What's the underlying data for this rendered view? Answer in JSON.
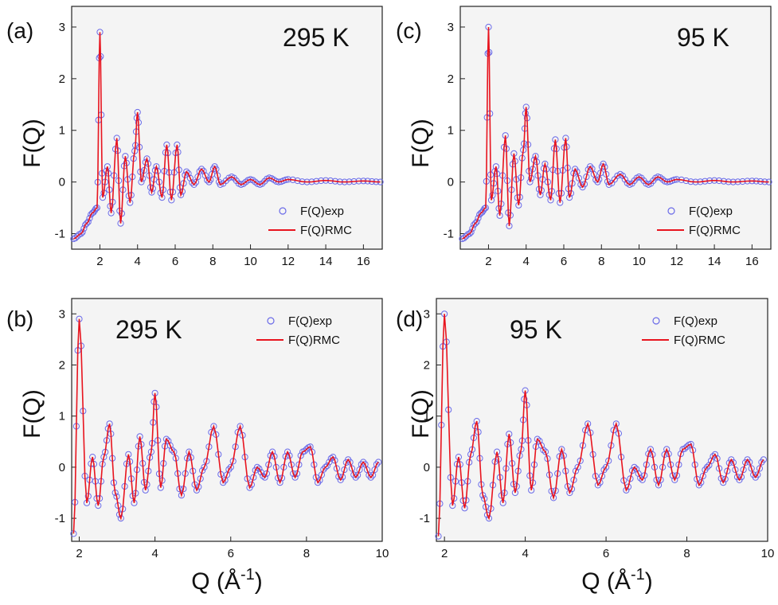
{
  "figure": {
    "y_label": "F(Q)",
    "x_label": "Q (Å",
    "x_label_exponent": "-1",
    "x_label_close": ")"
  },
  "legend": {
    "exp": "F(Q)exp",
    "rmc": "F(Q)RMC"
  },
  "colors": {
    "exp_marker": "#6a6ae8",
    "rmc_line": "#e8141e",
    "panel_bg": "#f4f4f4",
    "axes": "#222222"
  },
  "panels": [
    {
      "id": "a",
      "label": "(a)",
      "temperature": "295 K",
      "xlim": [
        0.5,
        17
      ],
      "ylim": [
        -1.3,
        3.4
      ],
      "xticks": [
        2,
        4,
        6,
        8,
        10,
        12,
        14,
        16
      ],
      "yticks": [
        -1,
        0,
        1,
        2,
        3
      ],
      "legend_pos": "bottom-right",
      "temp_pos": "top-right"
    },
    {
      "id": "c",
      "label": "(c)",
      "temperature": "95 K",
      "xlim": [
        0.5,
        17
      ],
      "ylim": [
        -1.3,
        3.4
      ],
      "xticks": [
        2,
        4,
        6,
        8,
        10,
        12,
        14,
        16
      ],
      "yticks": [
        -1,
        0,
        1,
        2,
        3
      ],
      "legend_pos": "bottom-right",
      "temp_pos": "top-right"
    },
    {
      "id": "b",
      "label": "(b)",
      "temperature": "295 K",
      "xlim": [
        1.8,
        10
      ],
      "ylim": [
        -1.45,
        3.3
      ],
      "xticks": [
        2,
        4,
        6,
        8,
        10
      ],
      "yticks": [
        -1,
        0,
        1,
        2,
        3
      ],
      "legend_pos": "top-right",
      "temp_pos": "top-left"
    },
    {
      "id": "d",
      "label": "(d)",
      "temperature": "95 K",
      "xlim": [
        1.8,
        10
      ],
      "ylim": [
        -1.45,
        3.3
      ],
      "xticks": [
        2,
        4,
        6,
        8,
        10
      ],
      "yticks": [
        -1,
        0,
        1,
        2,
        3
      ],
      "legend_pos": "top-right",
      "temp_pos": "top-left"
    }
  ],
  "chart_data": [
    {
      "type": "line",
      "panel": "a",
      "series": [
        {
          "name": "F(Q)exp",
          "style": "open-circle"
        },
        {
          "name": "F(Q)RMC",
          "style": "line"
        }
      ],
      "x": [
        0.6,
        1.0,
        1.3,
        1.6,
        1.85,
        2.0,
        2.15,
        2.4,
        2.6,
        2.9,
        3.1,
        3.35,
        3.6,
        3.85,
        4.0,
        4.2,
        4.5,
        4.75,
        5.0,
        5.3,
        5.55,
        5.8,
        6.1,
        6.3,
        6.6,
        7.0,
        7.4,
        7.8,
        8.1,
        8.4,
        9.0,
        9.5,
        10.0,
        10.5,
        11.0,
        11.5,
        12.0,
        13.0,
        14.0,
        15.0,
        16.0,
        16.9
      ],
      "y": [
        -1.1,
        -1.0,
        -0.8,
        -0.6,
        -0.5,
        2.9,
        -0.3,
        0.3,
        -0.6,
        0.85,
        -0.8,
        0.5,
        -0.4,
        0.6,
        1.35,
        0.0,
        0.45,
        -0.2,
        0.3,
        -0.3,
        0.72,
        -0.35,
        0.72,
        -0.25,
        0.2,
        -0.05,
        0.25,
        0.0,
        0.3,
        -0.05,
        0.1,
        -0.05,
        0.05,
        -0.05,
        0.08,
        0.0,
        0.05,
        0.0,
        0.03,
        0.0,
        0.02,
        0.0
      ]
    },
    {
      "type": "line",
      "panel": "c",
      "series": [
        {
          "name": "F(Q)exp",
          "style": "open-circle"
        },
        {
          "name": "F(Q)RMC",
          "style": "line"
        }
      ],
      "x": [
        0.6,
        1.0,
        1.3,
        1.6,
        1.85,
        2.0,
        2.15,
        2.4,
        2.6,
        2.9,
        3.1,
        3.35,
        3.6,
        3.85,
        4.0,
        4.2,
        4.5,
        4.75,
        5.0,
        5.3,
        5.55,
        5.8,
        6.1,
        6.3,
        6.6,
        7.0,
        7.4,
        7.8,
        8.1,
        8.4,
        9.0,
        9.5,
        10.0,
        10.5,
        11.0,
        11.5,
        12.0,
        13.0,
        14.0,
        15.0,
        16.0,
        16.9
      ],
      "y": [
        -1.1,
        -1.0,
        -0.8,
        -0.6,
        -0.5,
        3.0,
        -0.35,
        0.3,
        -0.65,
        0.9,
        -0.85,
        0.55,
        -0.45,
        0.62,
        1.45,
        0.0,
        0.5,
        -0.25,
        0.35,
        -0.35,
        0.82,
        -0.4,
        0.85,
        -0.3,
        0.25,
        -0.1,
        0.3,
        0.0,
        0.35,
        -0.05,
        0.15,
        -0.05,
        0.1,
        -0.05,
        0.1,
        0.0,
        0.05,
        0.0,
        0.03,
        0.0,
        0.02,
        0.0
      ]
    },
    {
      "type": "line",
      "panel": "b",
      "series": [
        {
          "name": "F(Q)exp",
          "style": "open-circle"
        },
        {
          "name": "F(Q)RMC",
          "style": "line"
        }
      ],
      "x": [
        1.85,
        2.0,
        2.2,
        2.35,
        2.5,
        2.65,
        2.8,
        2.95,
        3.1,
        3.3,
        3.45,
        3.6,
        3.75,
        3.9,
        4.0,
        4.15,
        4.3,
        4.5,
        4.7,
        4.9,
        5.1,
        5.3,
        5.55,
        5.8,
        6.0,
        6.25,
        6.5,
        6.7,
        6.9,
        7.1,
        7.3,
        7.5,
        7.7,
        7.9,
        8.1,
        8.3,
        8.5,
        8.7,
        8.9,
        9.1,
        9.3,
        9.5,
        9.7,
        9.9
      ],
      "y": [
        -1.3,
        2.9,
        -0.7,
        0.2,
        -0.75,
        0.2,
        0.85,
        -0.5,
        -1.0,
        0.25,
        -0.7,
        0.6,
        -0.45,
        0.3,
        1.45,
        -0.4,
        0.55,
        0.3,
        -0.55,
        0.3,
        -0.45,
        0.0,
        0.8,
        -0.3,
        0.0,
        0.8,
        -0.4,
        0.0,
        -0.2,
        0.3,
        -0.3,
        0.3,
        -0.2,
        0.3,
        0.4,
        -0.3,
        0.0,
        0.2,
        -0.25,
        0.15,
        -0.2,
        0.1,
        -0.2,
        0.1
      ]
    },
    {
      "type": "line",
      "panel": "d",
      "series": [
        {
          "name": "F(Q)exp",
          "style": "open-circle"
        },
        {
          "name": "F(Q)RMC",
          "style": "line"
        }
      ],
      "x": [
        1.85,
        2.0,
        2.2,
        2.35,
        2.5,
        2.65,
        2.8,
        2.95,
        3.1,
        3.3,
        3.45,
        3.6,
        3.75,
        3.9,
        4.0,
        4.15,
        4.3,
        4.5,
        4.7,
        4.9,
        5.1,
        5.3,
        5.55,
        5.8,
        6.0,
        6.25,
        6.5,
        6.7,
        6.9,
        7.1,
        7.3,
        7.5,
        7.7,
        7.9,
        8.1,
        8.3,
        8.5,
        8.7,
        8.9,
        9.1,
        9.3,
        9.5,
        9.7,
        9.9
      ],
      "y": [
        -1.35,
        3.0,
        -0.75,
        0.2,
        -0.8,
        0.25,
        0.9,
        -0.55,
        -1.0,
        0.3,
        -0.7,
        0.65,
        -0.5,
        0.35,
        1.5,
        -0.45,
        0.55,
        0.3,
        -0.6,
        0.35,
        -0.5,
        0.0,
        0.85,
        -0.35,
        0.0,
        0.85,
        -0.45,
        0.0,
        -0.25,
        0.35,
        -0.35,
        0.35,
        -0.25,
        0.35,
        0.45,
        -0.35,
        0.0,
        0.25,
        -0.3,
        0.15,
        -0.25,
        0.15,
        -0.2,
        0.15
      ]
    }
  ]
}
